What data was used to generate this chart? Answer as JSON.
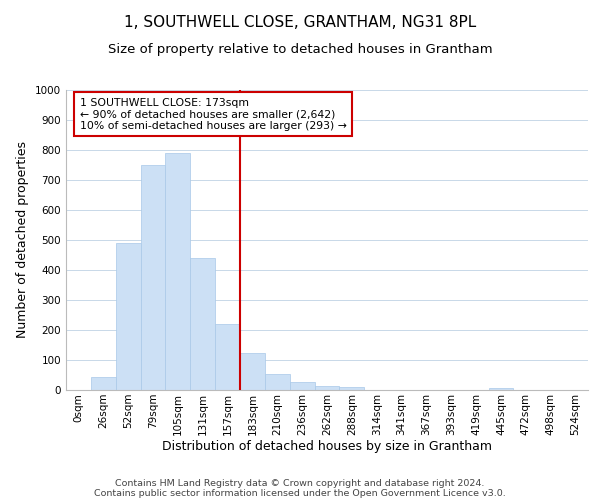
{
  "title": "1, SOUTHWELL CLOSE, GRANTHAM, NG31 8PL",
  "subtitle": "Size of property relative to detached houses in Grantham",
  "xlabel": "Distribution of detached houses by size in Grantham",
  "ylabel": "Number of detached properties",
  "bar_labels": [
    "0sqm",
    "26sqm",
    "52sqm",
    "79sqm",
    "105sqm",
    "131sqm",
    "157sqm",
    "183sqm",
    "210sqm",
    "236sqm",
    "262sqm",
    "288sqm",
    "314sqm",
    "341sqm",
    "367sqm",
    "393sqm",
    "419sqm",
    "445sqm",
    "472sqm",
    "498sqm",
    "524sqm"
  ],
  "bar_values": [
    0,
    45,
    490,
    750,
    790,
    440,
    220,
    125,
    52,
    28,
    15,
    10,
    0,
    0,
    0,
    0,
    0,
    8,
    0,
    0,
    0
  ],
  "bar_color": "#cce0f5",
  "bar_edge_color": "#a8c8e8",
  "vline_x": 7,
  "vline_color": "#cc0000",
  "annotation_title": "1 SOUTHWELL CLOSE: 173sqm",
  "annotation_line1": "← 90% of detached houses are smaller (2,642)",
  "annotation_line2": "10% of semi-detached houses are larger (293) →",
  "annotation_box_color": "#ffffff",
  "annotation_box_edge": "#cc0000",
  "footer1": "Contains HM Land Registry data © Crown copyright and database right 2024.",
  "footer2": "Contains public sector information licensed under the Open Government Licence v3.0.",
  "ylim": [
    0,
    1000
  ],
  "title_fontsize": 11,
  "subtitle_fontsize": 9.5,
  "axis_label_fontsize": 9,
  "tick_fontsize": 7.5,
  "annotation_fontsize": 7.8,
  "footer_fontsize": 6.8,
  "background_color": "#ffffff",
  "grid_color": "#c8d8e8"
}
